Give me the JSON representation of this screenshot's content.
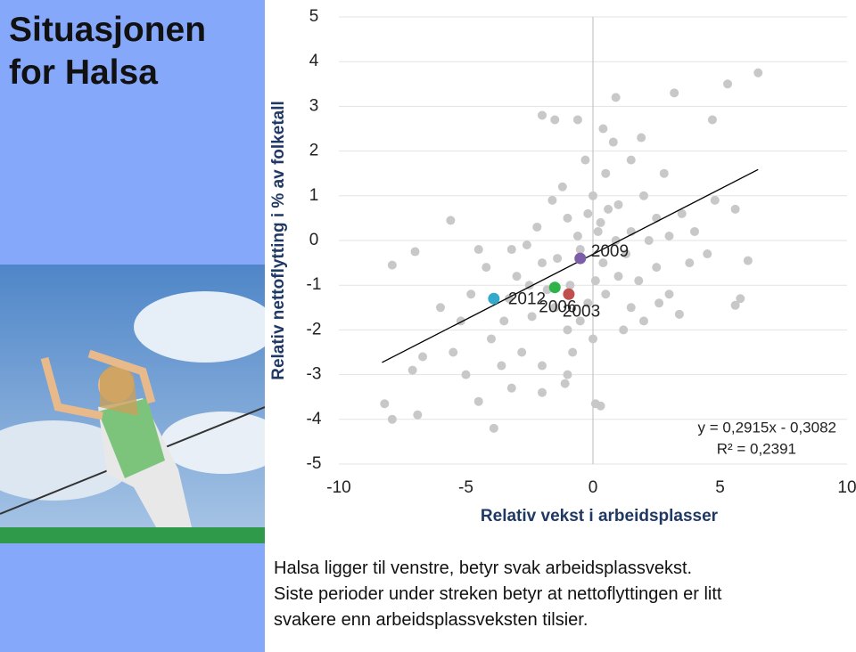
{
  "header": {
    "title": "Situasjonen for Halsa"
  },
  "chart_data": {
    "type": "scatter",
    "ylabel": "Relativ nettoflytting i % av folketall",
    "xlabel": "Relativ vekst i arbeidsplasser",
    "xlim": [
      -10,
      10
    ],
    "xticks": [
      -10,
      -5,
      0,
      5,
      10
    ],
    "ylim": [
      -5,
      5
    ],
    "yticks": [
      -5,
      -4,
      -3,
      -2,
      -1,
      0,
      1,
      2,
      3,
      4,
      5
    ],
    "grid": true,
    "points": {
      "color": "#c8c8c8",
      "x": [
        -1,
        0,
        0.5,
        1,
        -0.5,
        0.2,
        1.5,
        2,
        2.5,
        3,
        -2,
        -2.5,
        -3,
        -1.5,
        -1,
        -0.5,
        0.5,
        1,
        1.8,
        2.5,
        3,
        -3.5,
        -4,
        -2.8,
        -2,
        -0.8,
        0,
        1.2,
        2,
        0.4,
        -0.2,
        0.8,
        1.5,
        -1.2,
        -2.2,
        -3.2,
        -4.2,
        -4.8,
        -5.2,
        -3.6,
        -1.8,
        -0.6,
        0.1,
        0.9,
        2.2,
        3.5,
        4,
        3.8,
        2.8,
        1.9,
        0.4,
        -0.3,
        -1.6,
        -2.6,
        -1.4,
        0.6,
        1.3,
        -0.9,
        -2.4,
        -3.3,
        4.5,
        4.8,
        -6,
        -5.5,
        -4.5,
        -1,
        1.5,
        2.6,
        -0.2,
        0.3,
        6.5,
        5.3,
        3.2,
        0.9,
        -2,
        -1.5,
        -0.6,
        4.7,
        5.6,
        6.1,
        5.8,
        5.6,
        3.4,
        -7.9,
        -7,
        -5.6,
        -8.2,
        -7.9,
        -6.9,
        -7.1,
        -6.7,
        -3.9,
        -4.5,
        0.1,
        0.3,
        -1.1,
        -5,
        -3.2,
        -2
      ],
      "y": [
        0.5,
        1,
        1.5,
        0.8,
        -0.2,
        0.2,
        0.2,
        1,
        0.5,
        0.1,
        -0.5,
        -1,
        -0.8,
        -1.5,
        -2,
        -1.8,
        -1.2,
        -0.8,
        -0.9,
        -0.6,
        -1.2,
        -1.8,
        -2.2,
        -2.5,
        -2.8,
        -2.5,
        -2.2,
        -2,
        -1.8,
        -0.5,
        0.6,
        2.2,
        1.8,
        1.2,
        0.3,
        -0.2,
        -0.6,
        -1.2,
        -1.8,
        -2.8,
        -1.1,
        0.1,
        -0.9,
        0,
        0,
        0.6,
        0.2,
        -0.5,
        1.5,
        2.3,
        2.5,
        1.8,
        0.9,
        -0.1,
        -0.4,
        0.7,
        -0.3,
        -1,
        -1.7,
        -1.3,
        -0.3,
        0.9,
        -1.5,
        -2.5,
        -0.2,
        -3,
        -1.5,
        -1.4,
        -1.4,
        0.4,
        3.75,
        3.5,
        3.3,
        3.2,
        2.8,
        2.7,
        2.7,
        2.7,
        0.7,
        -0.45,
        -1.3,
        -1.45,
        -1.65,
        -0.55,
        -0.25,
        0.45,
        -3.65,
        -4,
        -3.9,
        -2.9,
        -2.6,
        -4.2,
        -3.6,
        -3.65,
        -3.7,
        -3.2,
        -3,
        -3.3,
        -3.4
      ]
    },
    "highlights": [
      {
        "label": "2009",
        "x": -0.5,
        "y": -0.4,
        "color": "#7b5ea7"
      },
      {
        "label": "2006",
        "x": -1.5,
        "y": -1.05,
        "color": "#2db34a"
      },
      {
        "label": "2012",
        "x": -3.9,
        "y": -1.3,
        "color": "#33aacc"
      },
      {
        "label": "2003",
        "x": -0.95,
        "y": -1.2,
        "color": "#c0504d"
      }
    ],
    "trendline": {
      "x": [
        -8.3,
        6.5
      ],
      "y": [
        -2.7277,
        1.5866
      ],
      "color": "#000000"
    },
    "equation": [
      "y = 0,2915x - 0,3082",
      "R² = 0,2391"
    ]
  },
  "caption": [
    "Halsa ligger til venstre, betyr svak arbeidsplassvekst.",
    "Siste perioder under streken betyr at nettoflyttingen er litt",
    "svakere enn arbeidsplassveksten tilsier."
  ]
}
